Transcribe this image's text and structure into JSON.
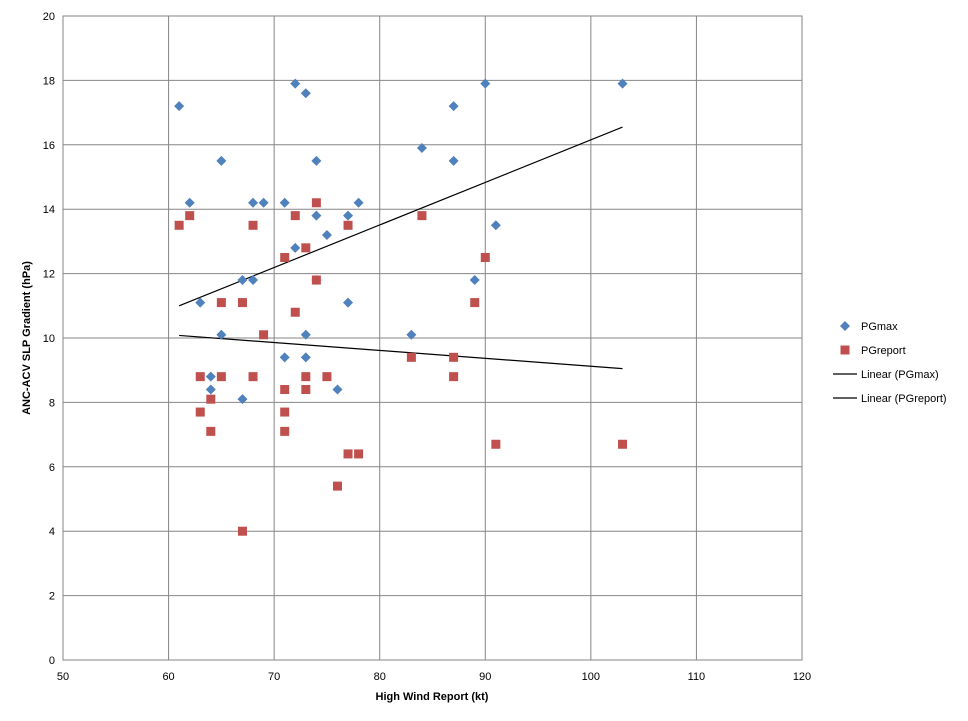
{
  "chart_data": {
    "type": "scatter",
    "xlabel": "High Wind Report (kt)",
    "ylabel": "ANC-ACV SLP Gradient (hPa)",
    "xlim": [
      50,
      120
    ],
    "ylim": [
      0,
      20
    ],
    "xticks": [
      50,
      60,
      70,
      80,
      90,
      100,
      110,
      120
    ],
    "yticks": [
      0,
      2,
      4,
      6,
      8,
      10,
      12,
      14,
      16,
      18,
      20
    ],
    "grid": true,
    "legend_position": "right",
    "series": [
      {
        "name": "PGmax",
        "marker": "diamond",
        "color": "#4F81BD",
        "points": [
          [
            61,
            17.2
          ],
          [
            62,
            14.2
          ],
          [
            63,
            11.1
          ],
          [
            64,
            8.8
          ],
          [
            64,
            8.4
          ],
          [
            65,
            15.5
          ],
          [
            65,
            10.1
          ],
          [
            67,
            11.8
          ],
          [
            67,
            8.1
          ],
          [
            68,
            14.2
          ],
          [
            68,
            11.8
          ],
          [
            69,
            14.2
          ],
          [
            71,
            14.2
          ],
          [
            71,
            9.4
          ],
          [
            72,
            17.9
          ],
          [
            72,
            12.8
          ],
          [
            73,
            17.6
          ],
          [
            73,
            10.1
          ],
          [
            73,
            9.4
          ],
          [
            74,
            15.5
          ],
          [
            74,
            13.8
          ],
          [
            74,
            11.8
          ],
          [
            75,
            13.2
          ],
          [
            76,
            8.4
          ],
          [
            77,
            13.8
          ],
          [
            77,
            11.1
          ],
          [
            78,
            14.2
          ],
          [
            83,
            10.1
          ],
          [
            84,
            15.9
          ],
          [
            87,
            17.2
          ],
          [
            87,
            15.5
          ],
          [
            89,
            11.8
          ],
          [
            90,
            17.9
          ],
          [
            91,
            13.5
          ],
          [
            103,
            17.9
          ]
        ]
      },
      {
        "name": "PGreport",
        "marker": "square",
        "color": "#C0504D",
        "points": [
          [
            61,
            13.5
          ],
          [
            62,
            13.8
          ],
          [
            63,
            8.8
          ],
          [
            63,
            7.7
          ],
          [
            64,
            8.1
          ],
          [
            64,
            7.1
          ],
          [
            65,
            11.1
          ],
          [
            65,
            8.8
          ],
          [
            67,
            11.1
          ],
          [
            67,
            4.0
          ],
          [
            68,
            13.5
          ],
          [
            68,
            8.8
          ],
          [
            69,
            10.1
          ],
          [
            71,
            12.5
          ],
          [
            71,
            8.4
          ],
          [
            71,
            7.7
          ],
          [
            71,
            7.1
          ],
          [
            72,
            13.8
          ],
          [
            72,
            10.8
          ],
          [
            73,
            12.8
          ],
          [
            73,
            8.8
          ],
          [
            73,
            8.4
          ],
          [
            74,
            14.2
          ],
          [
            74,
            11.8
          ],
          [
            75,
            8.8
          ],
          [
            76,
            5.4
          ],
          [
            77,
            13.5
          ],
          [
            77,
            6.4
          ],
          [
            78,
            6.4
          ],
          [
            83,
            9.4
          ],
          [
            84,
            13.8
          ],
          [
            87,
            9.4
          ],
          [
            87,
            8.8
          ],
          [
            89,
            11.1
          ],
          [
            90,
            12.5
          ],
          [
            91,
            6.7
          ],
          [
            103,
            6.7
          ]
        ]
      }
    ],
    "trendlines": [
      {
        "name": "Linear (PGmax)",
        "color": "#000000",
        "x": [
          61,
          103
        ],
        "y": [
          11.0,
          16.55
        ]
      },
      {
        "name": "Linear (PGreport)",
        "color": "#000000",
        "x": [
          61,
          103
        ],
        "y": [
          10.08,
          9.05
        ]
      }
    ]
  }
}
